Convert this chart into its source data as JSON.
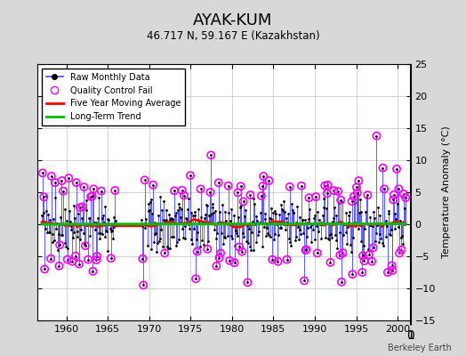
{
  "title": "AYAK-KUM",
  "subtitle": "46.717 N, 59.167 E (Kazakhstan)",
  "ylabel": "Temperature Anomaly (°C)",
  "credit": "Berkeley Earth",
  "xlim": [
    1956.5,
    2001.5
  ],
  "ylim": [
    -15,
    25
  ],
  "yticks": [
    -15,
    -10,
    -5,
    0,
    5,
    10,
    15,
    20,
    25
  ],
  "xticks": [
    1960,
    1965,
    1970,
    1975,
    1980,
    1985,
    1990,
    1995,
    2000
  ],
  "bg_color": "#d8d8d8",
  "plot_bg_color": "#ffffff",
  "raw_color": "#4444ff",
  "dot_color": "#000000",
  "qc_color": "#ff00ff",
  "moving_avg_color": "#ff0000",
  "trend_color": "#00bb00",
  "seed": 42,
  "start_year": 1957,
  "end_year": 2000,
  "gap_start": 1966,
  "gap_end": 1968
}
